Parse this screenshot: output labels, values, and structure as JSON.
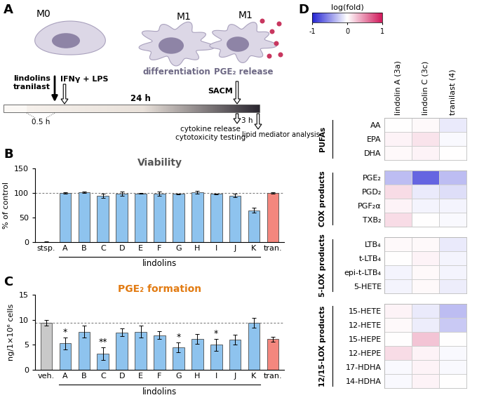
{
  "panel_labels": [
    "A",
    "B",
    "C",
    "D"
  ],
  "diagram": {
    "cells": [
      {
        "label": "M0"
      },
      {
        "label": "M1",
        "caption": "differentiation"
      },
      {
        "label": "M1",
        "caption": "PGE₂ release"
      }
    ],
    "timeline": {
      "treatment": [
        "lindolins",
        "tranilast"
      ],
      "stimulus": "IFNγ + LPS",
      "preincubation": "0.5 h",
      "incubation": "24 h",
      "harvest": "SACM",
      "readouts": [
        "cytokine release",
        "cytotoxicity testing"
      ],
      "incubation_2": "3 h",
      "final_readout": "lipid mediator analysis"
    }
  },
  "chart_data": [
    {
      "type": "bar",
      "title": "Viability",
      "y_label": "% of control",
      "categories": [
        "stsp.",
        "A",
        "B",
        "C",
        "D",
        "E",
        "F",
        "G",
        "H",
        "I",
        "J",
        "K",
        "tran."
      ],
      "values": [
        0.5,
        100,
        102,
        94,
        99,
        99,
        99,
        98,
        102,
        98,
        95,
        65,
        100
      ],
      "errors": [
        0.5,
        1,
        1.5,
        4,
        4,
        1,
        4,
        1,
        3,
        1,
        4,
        5,
        1
      ],
      "colors": [
        "#c9c9c9",
        "#8ec3ee",
        "#8ec3ee",
        "#8ec3ee",
        "#8ec3ee",
        "#8ec3ee",
        "#8ec3ee",
        "#8ec3ee",
        "#8ec3ee",
        "#8ec3ee",
        "#8ec3ee",
        "#8ec3ee",
        "#f4877e"
      ],
      "ylim": [
        0,
        150
      ],
      "yticks": [
        0,
        50,
        100,
        150
      ],
      "reference_line": 100,
      "category_groups": [
        {
          "label": "lindolins",
          "categories": [
            "A",
            "B",
            "C",
            "D",
            "E",
            "F",
            "G",
            "H",
            "I",
            "J",
            "K"
          ]
        }
      ]
    },
    {
      "type": "bar",
      "title": "PGE₂ formation",
      "y_label": "ng/1×10⁶ cells",
      "categories": [
        "veh.",
        "A",
        "B",
        "C",
        "D",
        "E",
        "F",
        "G",
        "H",
        "I",
        "J",
        "K",
        "tran."
      ],
      "values": [
        9.4,
        5.3,
        7.6,
        3.2,
        7.5,
        7.6,
        6.9,
        4.5,
        6.2,
        5.0,
        6.0,
        9.4,
        6.1
      ],
      "errors": [
        0.5,
        1.2,
        1.2,
        1.3,
        0.8,
        1.2,
        0.8,
        1.0,
        1.0,
        1.2,
        1.0,
        1.0,
        0.5
      ],
      "annotations": [
        null,
        "*",
        null,
        "**",
        null,
        null,
        null,
        "*",
        null,
        "*",
        null,
        null,
        null
      ],
      "colors": [
        "#c9c9c9",
        "#8ec3ee",
        "#8ec3ee",
        "#8ec3ee",
        "#8ec3ee",
        "#8ec3ee",
        "#8ec3ee",
        "#8ec3ee",
        "#8ec3ee",
        "#8ec3ee",
        "#8ec3ee",
        "#8ec3ee",
        "#f4877e"
      ],
      "ylim": [
        0,
        15
      ],
      "yticks": [
        0,
        5,
        10,
        15
      ],
      "reference_line": 9.4,
      "category_groups": [
        {
          "label": "lindolins",
          "categories": [
            "A",
            "B",
            "C",
            "D",
            "E",
            "F",
            "G",
            "H",
            "I",
            "J",
            "K"
          ]
        }
      ]
    },
    {
      "type": "heatmap",
      "columns": [
        "lindolin A (3a)",
        "lindolin C (3c)",
        "tranilast (4)"
      ],
      "colorbar": {
        "label": "log(fold)",
        "range": [
          -1,
          1
        ],
        "ticks": [
          -1,
          0,
          1
        ]
      },
      "row_groups": [
        {
          "label": "PUFAs",
          "rows": [
            {
              "name": "AA",
              "values": [
                0.0,
                0.03,
                -0.1
              ]
            },
            {
              "name": "EPA",
              "values": [
                0.05,
                0.12,
                -0.03
              ]
            },
            {
              "name": "DHA",
              "values": [
                0.03,
                0.05,
                0.0
              ]
            }
          ]
        },
        {
          "label": "COX products",
          "rows": [
            {
              "name": "PGE₂",
              "values": [
                -0.3,
                -0.7,
                -0.3
              ]
            },
            {
              "name": "PGD₂",
              "values": [
                0.15,
                -0.1,
                -0.15
              ]
            },
            {
              "name": "PGF₂α",
              "values": [
                0.05,
                -0.05,
                -0.05
              ]
            },
            {
              "name": "TXB₂",
              "values": [
                0.15,
                0.0,
                -0.03
              ]
            }
          ]
        },
        {
          "label": "5-LOX products",
          "rows": [
            {
              "name": "LTB₄",
              "values": [
                0.03,
                0.03,
                -0.1
              ]
            },
            {
              "name": "t-LTB₄",
              "values": [
                0.0,
                0.05,
                -0.05
              ]
            },
            {
              "name": "epi-t-LTB₄",
              "values": [
                -0.05,
                0.03,
                -0.05
              ]
            },
            {
              "name": "5-HETE",
              "values": [
                -0.05,
                0.03,
                -0.08
              ]
            }
          ]
        },
        {
          "label": "12/15-LOX products",
          "rows": [
            {
              "name": "15-HETE",
              "values": [
                0.05,
                -0.1,
                -0.3
              ]
            },
            {
              "name": "12-HETE",
              "values": [
                0.03,
                -0.08,
                -0.25
              ]
            },
            {
              "name": "15-HEPE",
              "values": [
                0.0,
                0.25,
                0.0
              ]
            },
            {
              "name": "12-HEPE",
              "values": [
                0.15,
                0.05,
                -0.03
              ]
            },
            {
              "name": "17-HDHA",
              "values": [
                -0.03,
                0.05,
                -0.03
              ]
            },
            {
              "name": "14-HDHA",
              "values": [
                -0.03,
                0.05,
                0.0
              ]
            }
          ]
        }
      ]
    }
  ]
}
